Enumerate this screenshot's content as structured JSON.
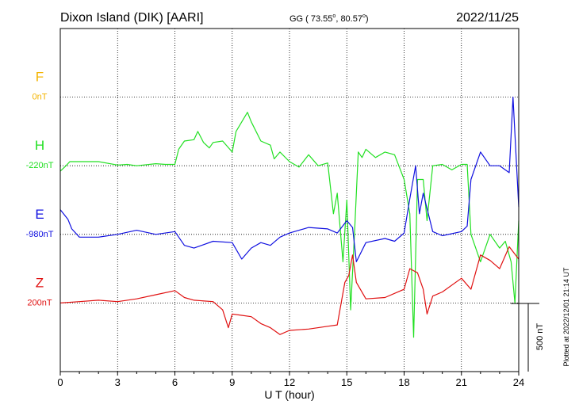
{
  "chart_data": {
    "type": "line",
    "title": "Dixon Island (DIK)  [AARI]",
    "coords": {
      "prefix": "GG ( 73.55",
      "mid": ",  80.57",
      "end": ")",
      "degree": "o"
    },
    "date": "2022/11/25",
    "xlabel": "U T (hour)",
    "xlim": [
      0,
      24
    ],
    "xticks": [
      "0",
      "3",
      "6",
      "9",
      "12",
      "15",
      "18",
      "21",
      "24"
    ],
    "scale_label": "500 nT",
    "plotted_note": "Plotted at 2022/12/01 21:14 UT",
    "grid": true,
    "channels": [
      {
        "name": "F",
        "baseline": "0nT",
        "color": "#f4b400",
        "level": 4,
        "values": []
      },
      {
        "name": "H",
        "baseline": "-220nT",
        "color": "#22e022",
        "level": 3,
        "x": [
          0,
          0.3,
          0.5,
          1,
          2,
          3,
          3.5,
          4,
          5,
          5.5,
          6,
          6.2,
          6.5,
          7,
          7.2,
          7.5,
          7.8,
          8,
          8.5,
          9,
          9.2,
          9.5,
          9.8,
          10,
          10.5,
          11,
          11.2,
          11.5,
          12,
          12.5,
          13,
          13.5,
          14,
          14.3,
          14.5,
          14.8,
          15,
          15.2,
          15.4,
          15.6,
          15.8,
          16,
          16.5,
          17,
          17.5,
          18,
          18.3,
          18.5,
          18.7,
          19,
          19.2,
          19.5,
          20,
          20.5,
          21,
          21.3,
          21.5,
          22,
          22.5,
          23,
          23.3,
          23.6,
          23.8,
          24
        ],
        "values": [
          -40,
          0,
          30,
          30,
          30,
          5,
          10,
          0,
          15,
          10,
          10,
          120,
          180,
          190,
          250,
          170,
          130,
          170,
          180,
          100,
          250,
          320,
          390,
          320,
          180,
          150,
          50,
          100,
          30,
          -10,
          80,
          0,
          20,
          -350,
          -200,
          -700,
          -250,
          -1050,
          -500,
          100,
          60,
          120,
          60,
          100,
          80,
          -100,
          -350,
          -1250,
          -100,
          -100,
          -400,
          0,
          10,
          -30,
          10,
          10,
          -500,
          -700,
          -500,
          -600,
          -550,
          -700,
          -1000,
          -400
        ]
      },
      {
        "name": "E",
        "baseline": "-980nT",
        "color": "#1010e0",
        "level": 2,
        "x": [
          0,
          0.4,
          0.6,
          1,
          2,
          3,
          4,
          5,
          6,
          6.5,
          7,
          8,
          9,
          9.5,
          10,
          10.5,
          11,
          11.5,
          12,
          13,
          14,
          14.5,
          15,
          15.3,
          15.5,
          16,
          17,
          17.5,
          18,
          18.3,
          18.6,
          18.8,
          19,
          19.5,
          20,
          21,
          21.3,
          21.5,
          22,
          22.5,
          23,
          23.5,
          23.7,
          24
        ],
        "values": [
          180,
          110,
          40,
          -20,
          -20,
          0,
          30,
          0,
          20,
          -80,
          -100,
          -50,
          -60,
          -180,
          -100,
          -60,
          -80,
          -20,
          10,
          50,
          40,
          10,
          100,
          50,
          -200,
          -60,
          -30,
          -50,
          10,
          260,
          500,
          150,
          300,
          20,
          -10,
          20,
          60,
          400,
          600,
          500,
          500,
          450,
          1000,
          200
        ]
      },
      {
        "name": "Z",
        "baseline": "200nT",
        "color": "#e01010",
        "level": 1,
        "x": [
          0,
          1,
          2,
          3,
          4,
          5,
          6,
          6.5,
          7,
          8,
          8.5,
          8.8,
          9,
          9.5,
          10,
          10.5,
          11,
          11.5,
          12,
          13,
          14,
          14.5,
          14.9,
          15.1,
          15.3,
          15.5,
          16,
          17,
          18,
          18.3,
          18.7,
          19,
          19.2,
          19.5,
          20,
          21,
          21.5,
          22,
          22.5,
          23,
          23.5,
          24
        ],
        "values": [
          0,
          10,
          20,
          10,
          30,
          60,
          90,
          40,
          20,
          10,
          -50,
          -180,
          -80,
          -90,
          -100,
          -150,
          -180,
          -230,
          -200,
          -190,
          -170,
          -160,
          150,
          200,
          350,
          150,
          30,
          40,
          100,
          250,
          220,
          100,
          -80,
          50,
          80,
          180,
          100,
          350,
          310,
          250,
          410,
          320
        ]
      }
    ],
    "levels_spacing_nT": 500
  }
}
